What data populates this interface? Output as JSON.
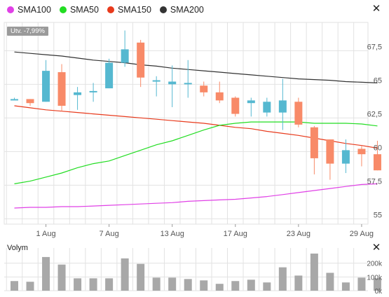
{
  "legend": [
    {
      "label": "SMA100",
      "color": "#e040e6"
    },
    {
      "label": "SMA50",
      "color": "#22dd22"
    },
    {
      "label": "SMA150",
      "color": "#e83a1c"
    },
    {
      "label": "SMA200",
      "color": "#333333"
    }
  ],
  "close_icon": "close-icon",
  "change_label": "Utv. -7,99%",
  "volume_title": "Volym",
  "colors": {
    "up": "#55b8d0",
    "down": "#f88a68",
    "volume": "#a8a8a8",
    "grid": "#e2e2e2"
  },
  "chart_data": [
    {
      "type": "candlestick",
      "title": "",
      "xlabel": "",
      "ylabel": "",
      "x_tick_labels": [
        "1 Aug",
        "7 Aug",
        "13 Aug",
        "17 Aug",
        "23 Aug",
        "29 Aug"
      ],
      "y_ticks": [
        55,
        57.5,
        60,
        62.5,
        65,
        67.5
      ],
      "y_tick_labels": [
        "55",
        "57,5",
        "60",
        "62,5",
        "65",
        "67,5"
      ],
      "ylim": [
        54.6,
        69.6
      ],
      "grid": true,
      "legend_position": "top-left",
      "candles": [
        {
          "open": 63.9,
          "high": 64.0,
          "low": 63.9,
          "close": 63.9
        },
        {
          "open": 63.9,
          "high": 63.9,
          "low": 63.4,
          "close": 63.6
        },
        {
          "open": 63.7,
          "high": 66.8,
          "low": 63.7,
          "close": 66.0
        },
        {
          "open": 65.9,
          "high": 66.5,
          "low": 63.0,
          "close": 63.4
        },
        {
          "open": 64.2,
          "high": 64.8,
          "low": 63.1,
          "close": 64.4
        },
        {
          "open": 64.4,
          "high": 65.1,
          "low": 63.7,
          "close": 64.5
        },
        {
          "open": 64.7,
          "high": 66.9,
          "low": 64.7,
          "close": 66.6
        },
        {
          "open": 66.6,
          "high": 69.0,
          "low": 66.3,
          "close": 67.6
        },
        {
          "open": 68.1,
          "high": 68.3,
          "low": 64.8,
          "close": 65.5
        },
        {
          "open": 65.3,
          "high": 65.6,
          "low": 64.1,
          "close": 65.3
        },
        {
          "open": 65.0,
          "high": 66.4,
          "low": 63.3,
          "close": 65.2
        },
        {
          "open": 65.1,
          "high": 66.8,
          "low": 64.0,
          "close": 65.1
        },
        {
          "open": 64.9,
          "high": 65.2,
          "low": 64.1,
          "close": 64.4
        },
        {
          "open": 64.4,
          "high": 65.2,
          "low": 63.6,
          "close": 63.8
        },
        {
          "open": 64.0,
          "high": 64.1,
          "low": 62.6,
          "close": 62.8
        },
        {
          "open": 63.6,
          "high": 64.0,
          "low": 62.6,
          "close": 63.8
        },
        {
          "open": 62.9,
          "high": 64.0,
          "low": 62.6,
          "close": 63.7
        },
        {
          "open": 62.9,
          "high": 65.4,
          "low": 61.6,
          "close": 63.8
        },
        {
          "open": 63.7,
          "high": 64.0,
          "low": 61.8,
          "close": 62.0
        },
        {
          "open": 61.8,
          "high": 61.9,
          "low": 58.3,
          "close": 59.5
        },
        {
          "open": 60.9,
          "high": 60.9,
          "low": 57.9,
          "close": 59.1
        },
        {
          "open": 59.1,
          "high": 60.9,
          "low": 58.4,
          "close": 60.1
        },
        {
          "open": 60.2,
          "high": 60.4,
          "low": 58.9,
          "close": 59.8
        },
        {
          "open": 59.8,
          "high": 60.8,
          "low": 58.6,
          "close": 58.6
        }
      ],
      "series": [
        {
          "name": "SMA200",
          "color": "#333333",
          "values": [
            67.4,
            67.3,
            67.2,
            67.1,
            66.95,
            66.8,
            66.7,
            66.6,
            66.45,
            66.35,
            66.2,
            66.1,
            66.0,
            65.9,
            65.8,
            65.7,
            65.6,
            65.5,
            65.4,
            65.35,
            65.3,
            65.2,
            65.15,
            65.1
          ]
        },
        {
          "name": "SMA150",
          "color": "#e83a1c",
          "values": [
            63.4,
            63.25,
            63.1,
            63.0,
            62.9,
            62.8,
            62.7,
            62.6,
            62.5,
            62.4,
            62.3,
            62.2,
            62.1,
            61.95,
            61.8,
            61.7,
            61.5,
            61.35,
            61.2,
            61.0,
            60.8,
            60.6,
            60.45,
            60.25
          ]
        },
        {
          "name": "SMA50",
          "color": "#22dd22",
          "values": [
            57.6,
            57.8,
            58.1,
            58.4,
            58.8,
            59.1,
            59.3,
            59.7,
            60.1,
            60.5,
            60.8,
            61.2,
            61.6,
            61.95,
            62.1,
            62.2,
            62.2,
            62.2,
            62.2,
            62.1,
            62.1,
            62.1,
            62.05,
            61.9
          ]
        },
        {
          "name": "SMA100",
          "color": "#e040e6",
          "values": [
            55.8,
            55.85,
            55.85,
            55.9,
            55.9,
            55.95,
            56.0,
            56.05,
            56.1,
            56.15,
            56.2,
            56.3,
            56.35,
            56.4,
            56.45,
            56.55,
            56.65,
            56.8,
            56.95,
            57.1,
            57.25,
            57.4,
            57.55,
            57.6
          ]
        }
      ]
    },
    {
      "type": "bar",
      "title": "Volym",
      "y_ticks": [
        0,
        100000,
        200000
      ],
      "y_tick_labels": [
        "0k",
        "100k",
        "200k"
      ],
      "ylim": [
        0,
        270000
      ],
      "values": [
        70000,
        65000,
        245000,
        190000,
        90000,
        90000,
        90000,
        235000,
        195000,
        95000,
        95000,
        85000,
        75000,
        50000,
        70000,
        80000,
        60000,
        170000,
        110000,
        270000,
        130000,
        60000,
        95000,
        90000
      ]
    }
  ]
}
